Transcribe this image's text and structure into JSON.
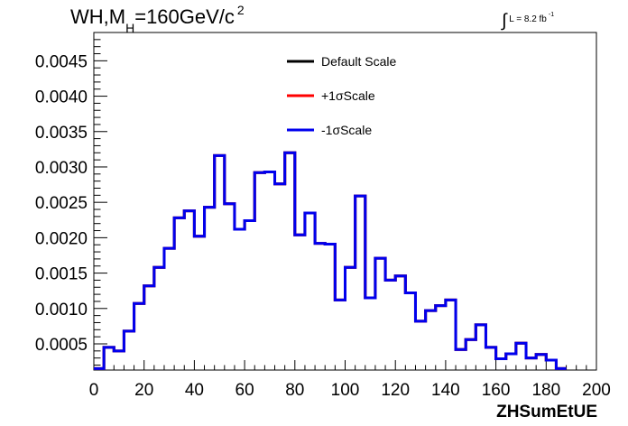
{
  "title": {
    "main": "WH,M",
    "sub": "H",
    "rest": "=160GeV/c",
    "sup": "2"
  },
  "lumi": {
    "integral": "∫",
    "text": "L = 8.2 fb",
    "sup": "-1"
  },
  "chart_data": {
    "type": "line",
    "xlabel": "ZHSumEtUE",
    "ylabel": "",
    "xlim": [
      0,
      200
    ],
    "ylim": [
      0.00013,
      0.0049
    ],
    "x_ticks": [
      "0",
      "20",
      "40",
      "60",
      "80",
      "100",
      "120",
      "140",
      "160",
      "180",
      "200"
    ],
    "y_ticks": [
      "0.0005",
      "0.0010",
      "0.0015",
      "0.0020",
      "0.0025",
      "0.0030",
      "0.0035",
      "0.0040",
      "0.0045"
    ],
    "y_tick_values": [
      0.0005,
      0.001,
      0.0015,
      0.002,
      0.0025,
      0.003,
      0.0035,
      0.004,
      0.0045
    ],
    "bin_width": 4,
    "bin_edges_start": 0,
    "legend_position": "top-center",
    "series": [
      {
        "name": "Default Scale",
        "color": "#000000",
        "values": [
          0.00015,
          0.00045,
          0.0004,
          0.00068,
          0.00107,
          0.00132,
          0.00158,
          0.00185,
          0.00228,
          0.00238,
          0.00202,
          0.00243,
          0.00316,
          0.00248,
          0.00212,
          0.00224,
          0.00292,
          0.00293,
          0.00276,
          0.0032,
          0.00204,
          0.00235,
          0.00192,
          0.00191,
          0.00112,
          0.00158,
          0.00259,
          0.00115,
          0.00171,
          0.0014,
          0.00146,
          0.00122,
          0.00082,
          0.00097,
          0.00104,
          0.00112,
          0.00042,
          0.00056,
          0.00077,
          0.00045,
          0.00029,
          0.00036,
          0.00051,
          0.0003,
          0.00035,
          0.00027,
          0.00015
        ]
      },
      {
        "name": "+1σScale",
        "color": "#ff0000",
        "values": [
          0.00015,
          0.00045,
          0.0004,
          0.00068,
          0.00107,
          0.00132,
          0.00158,
          0.00185,
          0.00228,
          0.00238,
          0.00202,
          0.00243,
          0.00316,
          0.00248,
          0.00212,
          0.00224,
          0.00292,
          0.00293,
          0.00276,
          0.0032,
          0.00204,
          0.00235,
          0.00192,
          0.00191,
          0.00112,
          0.00158,
          0.00259,
          0.00115,
          0.00171,
          0.0014,
          0.00146,
          0.00122,
          0.00082,
          0.00097,
          0.00104,
          0.00112,
          0.00042,
          0.00056,
          0.00077,
          0.00045,
          0.00029,
          0.00036,
          0.00051,
          0.0003,
          0.00035,
          0.00027,
          0.00015
        ]
      },
      {
        "name": "-1σScale",
        "color": "#0000ee",
        "values": [
          0.00015,
          0.00045,
          0.0004,
          0.00068,
          0.00107,
          0.00132,
          0.00158,
          0.00185,
          0.00228,
          0.00238,
          0.00202,
          0.00243,
          0.00316,
          0.00248,
          0.00212,
          0.00224,
          0.00292,
          0.00293,
          0.00276,
          0.0032,
          0.00204,
          0.00235,
          0.00192,
          0.00191,
          0.00112,
          0.00158,
          0.00259,
          0.00115,
          0.00171,
          0.0014,
          0.00146,
          0.00122,
          0.00082,
          0.00097,
          0.00104,
          0.00112,
          0.00042,
          0.00056,
          0.00077,
          0.00045,
          0.00029,
          0.00036,
          0.00051,
          0.0003,
          0.00035,
          0.00027,
          0.00015
        ]
      }
    ]
  }
}
